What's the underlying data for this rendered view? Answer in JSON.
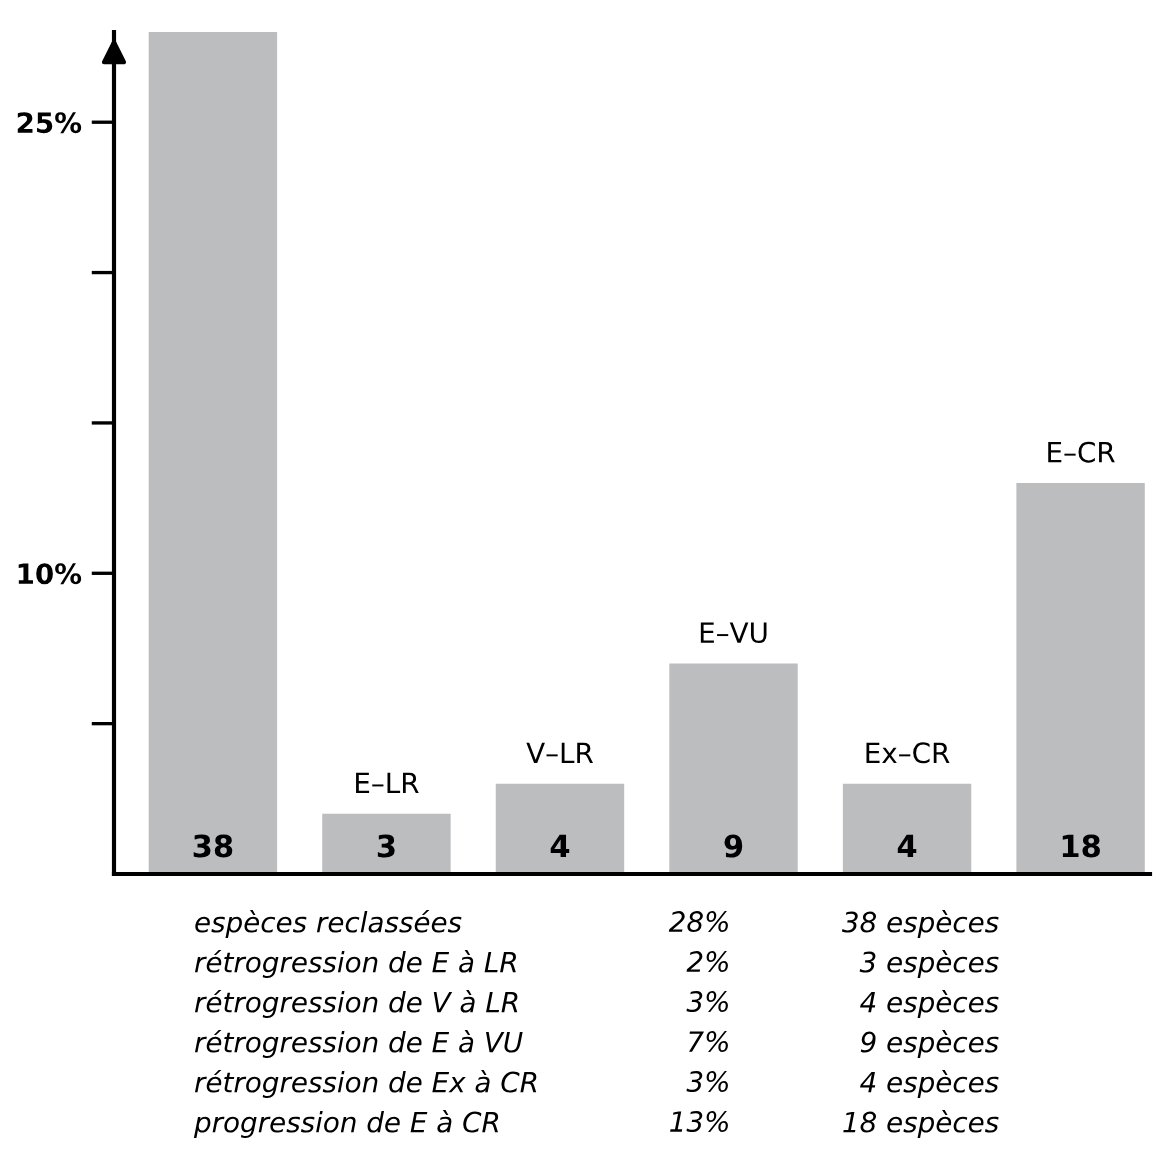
{
  "chart_data": {
    "type": "bar",
    "categories": [
      null,
      "E–LR",
      "V–LR",
      "E–VU",
      "Ex–CR",
      "E–CR"
    ],
    "values": [
      28,
      2,
      3,
      7,
      3,
      13
    ],
    "color": "#bcbdbf",
    "ylim": [
      0,
      28
    ],
    "yticks": [
      {
        "value": 5,
        "label": null
      },
      {
        "value": 10,
        "label": "10%"
      },
      {
        "value": 15,
        "label": null
      },
      {
        "value": 20,
        "label": null
      },
      {
        "value": 25,
        "label": "25%"
      }
    ],
    "grid": false,
    "annotations": [
      "38",
      "3",
      "4",
      "9",
      "4",
      "18",
      "espèces reclassées",
      "28%",
      "38 espèces",
      "rétrogression de E à LR",
      "2%",
      "3 espèces",
      "rétrogression de V à LR",
      "3%",
      "4 espèces",
      "rétrogression de E à VU",
      "7%",
      "9 espèces",
      "rétrogression de Ex à CR",
      "3%",
      "4 espèces",
      "progression de E à CR",
      "13%",
      "18 espèces"
    ]
  }
}
